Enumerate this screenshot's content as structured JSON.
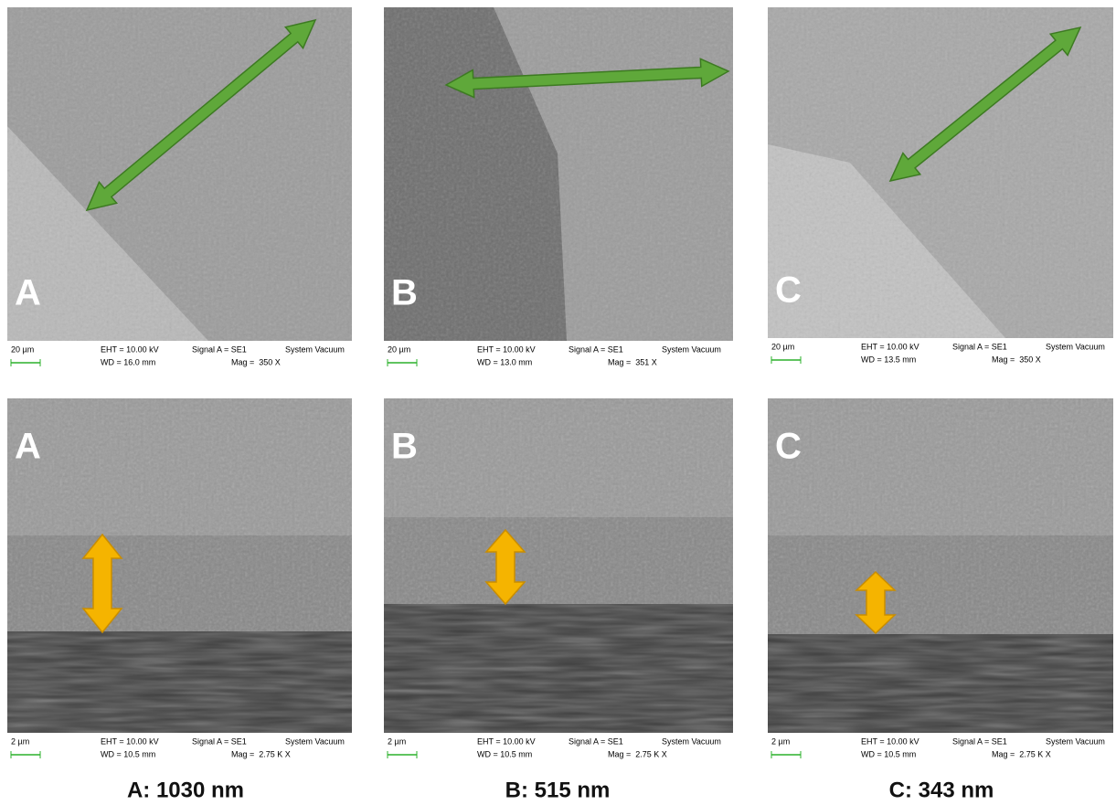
{
  "panels": [
    {
      "letter": "A",
      "scale": "20 µm",
      "eht": "EHT = 10.00 kV",
      "signal": "Signal A = SE1",
      "system": "System Vacuum",
      "wd": "WD = 16.0 mm",
      "mag": "Mag =  350 X"
    },
    {
      "letter": "B",
      "scale": "20 µm",
      "eht": "EHT = 10.00 kV",
      "signal": "Signal A = SE1",
      "system": "System Vacuum",
      "wd": "WD = 13.0 mm",
      "mag": "Mag =  351 X"
    },
    {
      "letter": "C",
      "scale": "20 µm",
      "eht": "EHT = 10.00 kV",
      "signal": "Signal A = SE1",
      "system": "System Vacuum",
      "wd": "WD = 13.5 mm",
      "mag": "Mag =  350 X"
    },
    {
      "letter": "A",
      "scale": "2 µm",
      "eht": "EHT = 10.00 kV",
      "signal": "Signal A = SE1",
      "system": "System Vacuum",
      "wd": "WD = 10.5 mm",
      "mag": "Mag =  2.75 K X"
    },
    {
      "letter": "B",
      "scale": "2 µm",
      "eht": "EHT = 10.00 kV",
      "signal": "Signal A = SE1",
      "system": "System Vacuum",
      "wd": "WD = 10.5 mm",
      "mag": "Mag =  2.75 K X"
    },
    {
      "letter": "C",
      "scale": "2 µm",
      "eht": "EHT = 10.00 kV",
      "signal": "Signal A = SE1",
      "system": "System Vacuum",
      "wd": "WD = 10.5 mm",
      "mag": "Mag =  2.75 K X"
    }
  ],
  "captions": [
    "A: 1030 nm",
    "B: 515 nm",
    "C: 343 nm"
  ]
}
